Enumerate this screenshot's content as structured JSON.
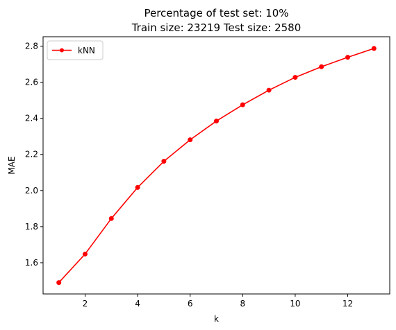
{
  "chart_data": {
    "type": "line",
    "title": "Percentage of test set: 10%",
    "subtitle": "Train size: 23219 Test size: 2580",
    "xlabel": "k",
    "ylabel": "MAE",
    "x": [
      1,
      2,
      3,
      4,
      5,
      6,
      7,
      8,
      9,
      10,
      11,
      12,
      13
    ],
    "series": [
      {
        "name": "kNN",
        "color": "#ff0000",
        "marker": "circle",
        "values": [
          1.49,
          1.648,
          1.845,
          2.017,
          2.162,
          2.281,
          2.385,
          2.475,
          2.556,
          2.627,
          2.686,
          2.738,
          2.787
        ]
      }
    ],
    "xlim": [
      0.4,
      13.6
    ],
    "ylim": [
      1.427,
      2.852
    ],
    "xticks": [
      2,
      4,
      6,
      8,
      10,
      12
    ],
    "yticks": [
      1.6,
      1.8,
      2.0,
      2.2,
      2.4,
      2.6,
      2.8
    ],
    "ytick_labels": [
      "1.6",
      "1.8",
      "2.0",
      "2.2",
      "2.4",
      "2.6",
      "2.8"
    ],
    "grid": false,
    "legend_position": "top-left"
  }
}
